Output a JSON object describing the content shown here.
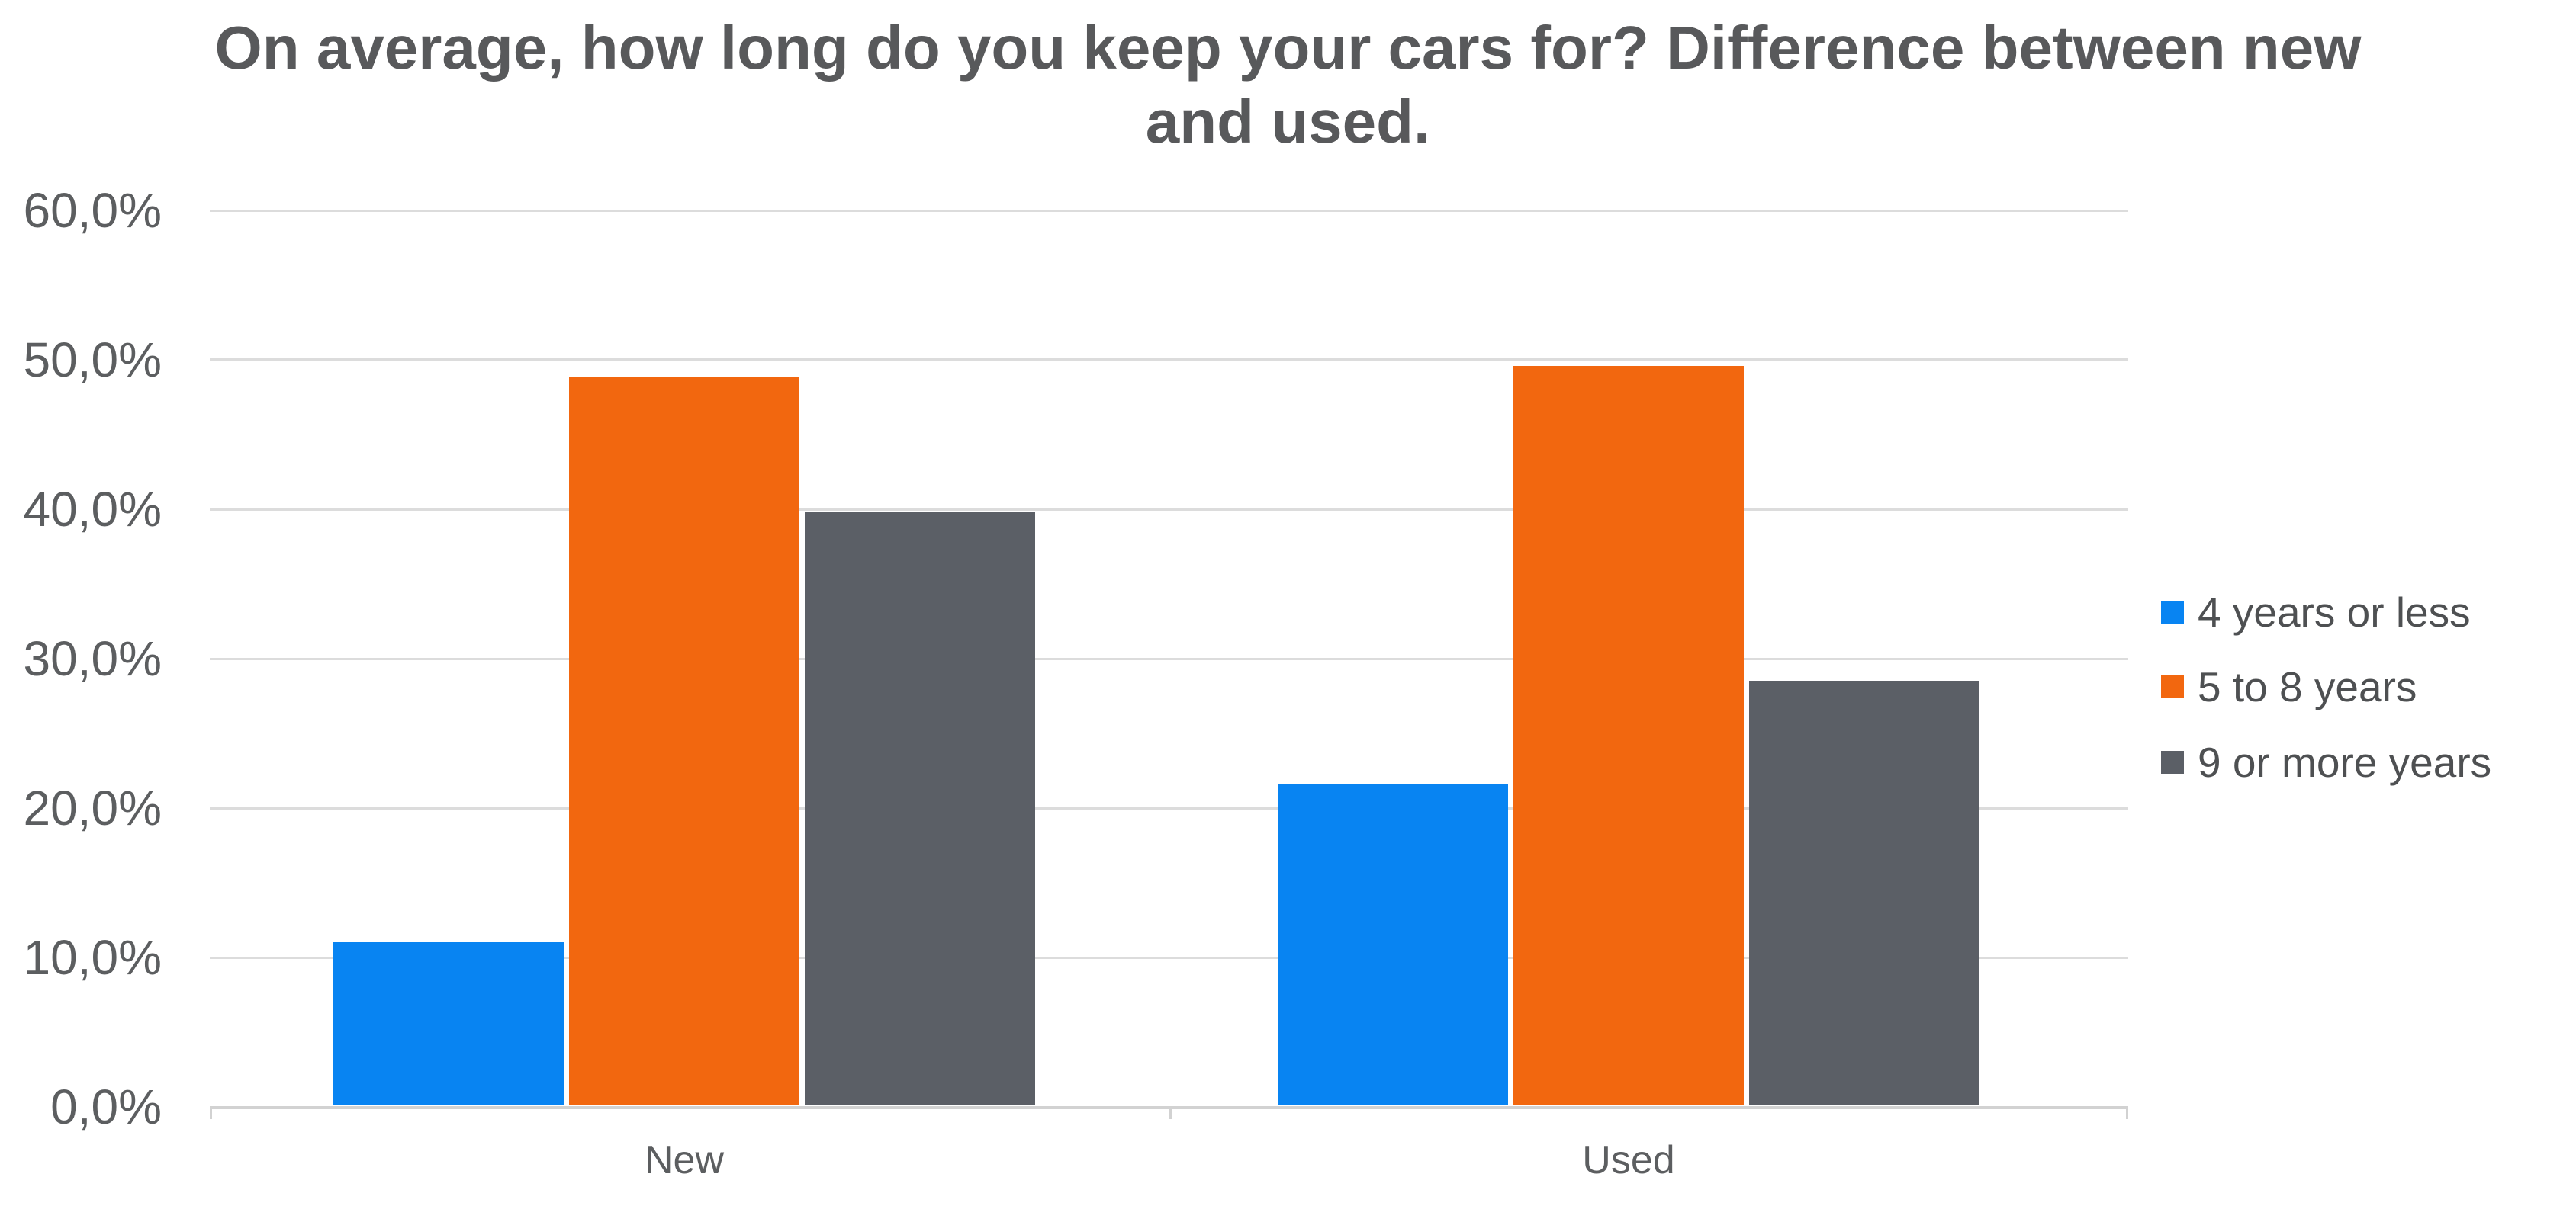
{
  "chart_data": {
    "type": "bar",
    "title": "On average, how long do you keep your cars for? Difference between new and used.",
    "title_lines": [
      "On average, how long do you keep your cars for? Difference between new",
      "and used."
    ],
    "categories": [
      "New",
      "Used"
    ],
    "series": [
      {
        "name": "4 years or less",
        "color": "#0884f2",
        "values": [
          10.9,
          21.5
        ]
      },
      {
        "name": "5 to 8 years",
        "color": "#f2670f",
        "values": [
          48.7,
          49.5
        ]
      },
      {
        "name": "9 or more years",
        "color": "#5b5f66",
        "values": [
          39.7,
          28.4
        ]
      }
    ],
    "y_axis": {
      "min": 0,
      "max": 60,
      "step": 10,
      "tick_labels": [
        "0,0%",
        "10,0%",
        "20,0%",
        "30,0%",
        "40,0%",
        "50,0%",
        "60,0%"
      ],
      "number_format": "comma-decimal-percent"
    },
    "grid": true,
    "legend_position": "right"
  },
  "colors": {
    "title_text": "#58595b",
    "axis_text": "#5c5e60",
    "legend_text": "#4e5052",
    "gridline": "#dcdcdc",
    "axis_line": "#d2d2d2",
    "background": "#ffffff"
  }
}
